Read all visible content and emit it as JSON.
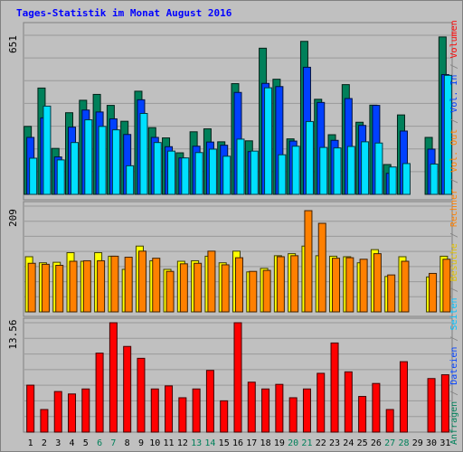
{
  "chart_data": {
    "type": "bar",
    "title": "Tages-Statistik im Monat August 2016",
    "categories": [
      "1",
      "2",
      "3",
      "4",
      "5",
      "6",
      "7",
      "8",
      "9",
      "10",
      "11",
      "12",
      "13",
      "14",
      "15",
      "16",
      "17",
      "18",
      "19",
      "20",
      "21",
      "22",
      "23",
      "24",
      "25",
      "26",
      "27",
      "28",
      "29",
      "30",
      "31"
    ],
    "weekend_days": [
      6,
      7,
      13,
      14,
      20,
      21,
      27,
      28
    ],
    "panels": [
      {
        "name": "top",
        "ymax_label": "651",
        "ylim": [
          0,
          651
        ],
        "series": [
          {
            "name": "Anfragen",
            "color": "#00805a",
            "values": [
              278,
              435,
              188,
              334,
              385,
              409,
              364,
              299,
              422,
              273,
              231,
              170,
              256,
              268,
              215,
              453,
              219,
              598,
              471,
              227,
              626,
              389,
              244,
              449,
              295,
              365,
              122,
              325,
              0,
              233,
              644
            ]
          },
          {
            "name": "Dateien",
            "color": "#0040ff",
            "values": [
              233,
              313,
              153,
              275,
              345,
              337,
              309,
              245,
              387,
              233,
              195,
              149,
              197,
              214,
              201,
              417,
              175,
              454,
              441,
              218,
              520,
              376,
              221,
              392,
              282,
              364,
              86,
              259,
              0,
              185,
              490
            ]
          },
          {
            "name": "Seiten",
            "color": "#00e0ff",
            "values": [
              148,
              361,
              141,
              212,
              305,
              278,
              264,
              117,
              331,
              212,
              177,
              149,
              171,
              185,
              156,
              226,
              177,
              436,
              162,
              197,
              298,
              192,
              190,
              196,
              215,
              210,
              112,
              126,
              0,
              124,
              487
            ]
          }
        ]
      },
      {
        "name": "middle",
        "ymax_label": "209",
        "ylim": [
          0,
          209
        ],
        "series": [
          {
            "name": "Besuche",
            "color": "#ffff00",
            "values": [
              109,
              97,
              98,
              117,
              100,
              117,
              110,
              84,
              130,
              101,
              84,
              100,
              101,
              110,
              97,
              120,
              79,
              86,
              111,
              115,
              130,
              111,
              110,
              109,
              97,
              123,
              70,
              109,
              0,
              69,
              110
            ]
          },
          {
            "name": "Rechner",
            "color": "#ff8000",
            "values": [
              96,
              94,
              92,
              100,
              101,
              101,
              110,
              108,
              120,
              106,
              80,
              95,
              96,
              120,
              93,
              107,
              80,
              82,
              109,
              111,
              200,
              175,
              106,
              107,
              104,
              115,
              73,
              100,
              0,
              76,
              104
            ]
          }
        ]
      },
      {
        "name": "bottom",
        "ymax_label": "13.56",
        "ylim": [
          0,
          13.56
        ],
        "series": [
          {
            "name": "Volumen",
            "color": "#ff0000",
            "values": [
              5.82,
              2.8,
              5.03,
              4.73,
              5.35,
              9.79,
              13.56,
              10.62,
              9.15,
              5.35,
              5.73,
              4.26,
              5.35,
              7.65,
              3.88,
              13.56,
              6.19,
              5.35,
              5.92,
              4.26,
              5.35,
              7.29,
              11.05,
              7.47,
              4.42,
              6.03,
              2.8,
              8.73,
              0,
              6.64,
              7.11
            ]
          }
        ]
      }
    ],
    "legend_right": [
      "Anfragen",
      "/",
      "Dateien",
      "/",
      "Seiten",
      "/",
      "Besuche",
      "/",
      "Rechner",
      "/",
      "Vol. Out",
      "/",
      "Vol. In",
      "/",
      "Volumen"
    ],
    "legend_colors": {
      "Anfragen": "#00805a",
      "Dateien": "#0040ff",
      "Seiten": "#00c0ff",
      "Besuche": "#e0c000",
      "Rechner": "#ff8000",
      "Vol. Out": "#ff8000",
      "Vol. In": "#0040ff",
      "Volumen": "#ff0000",
      "/": "#808080"
    },
    "colors": {
      "background": "#c0c0c0",
      "plot_bg": "#c0c0c0",
      "gridline": "#808080",
      "day_label": "#000000",
      "weekend_label": "#00805a"
    }
  }
}
